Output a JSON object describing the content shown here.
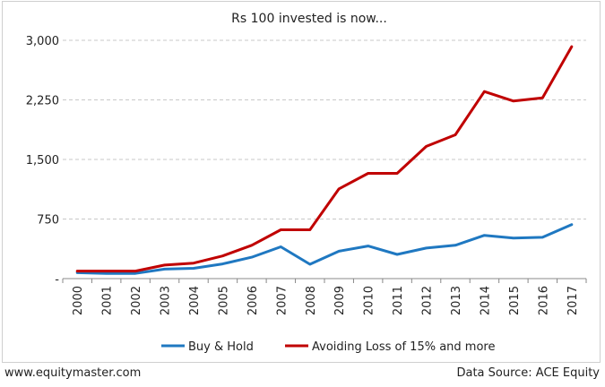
{
  "chart_data": {
    "type": "line",
    "title": "Rs 100 invested is now...",
    "xlabel": "",
    "ylabel": "",
    "categories": [
      "2000",
      "2001",
      "2002",
      "2003",
      "2004",
      "2005",
      "2006",
      "2007",
      "2008",
      "2009",
      "2010",
      "2011",
      "2012",
      "2013",
      "2014",
      "2015",
      "2016",
      "2017"
    ],
    "y_ticks": [
      "-",
      "750",
      "1,500",
      "2,250",
      "3,000"
    ],
    "ylim": [
      0,
      3000
    ],
    "grid": "horizontal dashed",
    "legend_position": "bottom",
    "series": [
      {
        "name": "Buy & Hold",
        "color": "#1f78c1",
        "values": [
          75,
          65,
          65,
          120,
          130,
          185,
          270,
          400,
          180,
          345,
          410,
          305,
          385,
          420,
          545,
          510,
          520,
          680
        ]
      },
      {
        "name": "Avoiding Loss of 15% and more",
        "color": "#c00000",
        "values": [
          95,
          95,
          95,
          170,
          195,
          285,
          420,
          615,
          615,
          1130,
          1325,
          1325,
          1665,
          1810,
          2355,
          2235,
          2275,
          2920
        ]
      }
    ]
  },
  "footer": {
    "left": "www.equitymaster.com",
    "right": "Data Source: ACE Equity"
  }
}
